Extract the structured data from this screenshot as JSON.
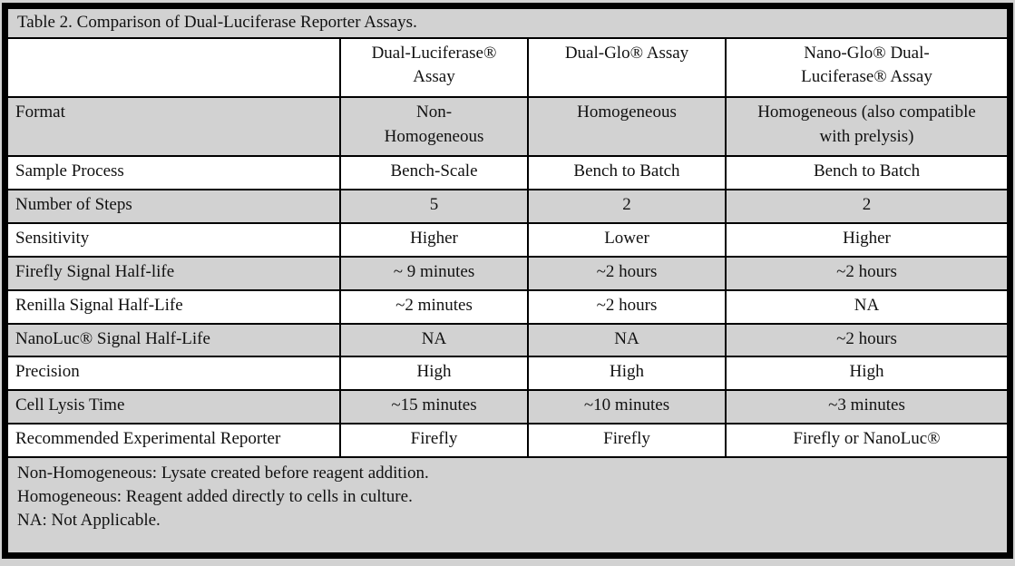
{
  "table": {
    "title": "Table 2. Comparison of Dual-Luciferase Reporter Assays.",
    "header": {
      "col0": "",
      "col1": "Dual-Luciferase® Assay",
      "col2": "Dual-Glo® Assay",
      "col3": "Nano-Glo® Dual-Luciferase® Assay"
    },
    "rows": [
      {
        "label": "Format",
        "values": [
          "Non-Homogeneous",
          "Homogeneous",
          "Homogeneous (also compatible with prelysis)"
        ]
      },
      {
        "label": "Sample Process",
        "values": [
          "Bench-Scale",
          "Bench to Batch",
          "Bench to Batch"
        ]
      },
      {
        "label": "Number of Steps",
        "values": [
          "5",
          "2",
          "2"
        ]
      },
      {
        "label": "Sensitivity",
        "values": [
          "Higher",
          "Lower",
          "Higher"
        ]
      },
      {
        "label": "Firefly Signal Half-life",
        "values": [
          "~ 9 minutes",
          "~2 hours",
          "~2 hours"
        ]
      },
      {
        "label": "Renilla Signal Half-Life",
        "values": [
          "~2 minutes",
          "~2 hours",
          "NA"
        ]
      },
      {
        "label": "NanoLuc® Signal Half-Life",
        "values": [
          "NA",
          "NA",
          "~2 hours"
        ]
      },
      {
        "label": "Precision",
        "values": [
          "High",
          "High",
          "High"
        ]
      },
      {
        "label": "Cell Lysis Time",
        "values": [
          "~15 minutes",
          "~10 minutes",
          "~3 minutes"
        ]
      },
      {
        "label": "Recommended Experimental Reporter",
        "values": [
          "Firefly",
          "Firefly",
          "Firefly or NanoLuc®"
        ]
      }
    ],
    "footnotes": {
      "line1": "Non-Homogeneous: Lysate created before reagent addition.",
      "line2": "Homogeneous: Reagent added directly to cells in culture.",
      "line3": "NA: Not Applicable."
    }
  },
  "colors": {
    "shaded_row_bg": "#d2d2d2",
    "border": "#000000",
    "page_bg": "#d2d2d2"
  }
}
